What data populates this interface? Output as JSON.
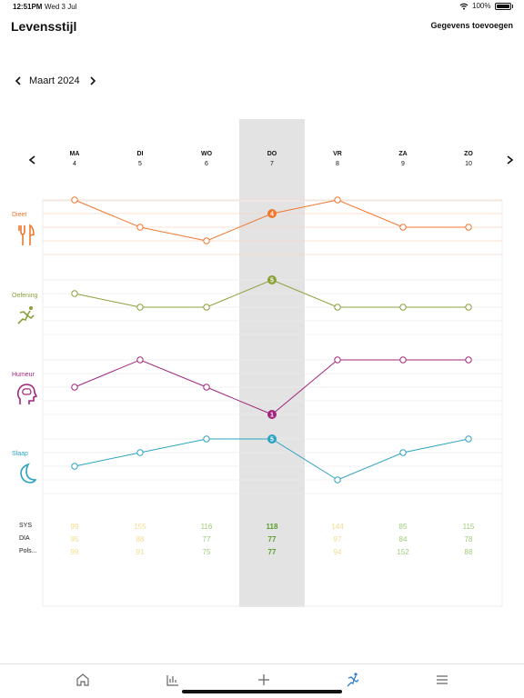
{
  "status": {
    "time": "12:51PM",
    "date": "Wed 3 Jul",
    "battery": "100%"
  },
  "header": {
    "title": "Levensstijl",
    "action": "Gegevens toevoegen"
  },
  "month_nav": {
    "label": "Maart 2024"
  },
  "days": [
    {
      "name": "MA",
      "num": "4"
    },
    {
      "name": "DI",
      "num": "5"
    },
    {
      "name": "WO",
      "num": "6"
    },
    {
      "name": "DO",
      "num": "7"
    },
    {
      "name": "VR",
      "num": "8"
    },
    {
      "name": "ZA",
      "num": "9"
    },
    {
      "name": "ZO",
      "num": "10"
    }
  ],
  "selected_day_index": 3,
  "categories": [
    {
      "key": "dieet",
      "label": "Dieet",
      "color": "#f0772e",
      "icon": "fork-knife-icon",
      "levels": [
        5,
        3,
        2,
        4,
        5,
        3,
        3
      ],
      "selected_value": "4"
    },
    {
      "key": "oefening",
      "label": "Oefening",
      "color": "#8aa03b",
      "icon": "running-icon",
      "levels": [
        4,
        3,
        3,
        5,
        3,
        3,
        3
      ],
      "selected_value": "5"
    },
    {
      "key": "humeur",
      "label": "Humeur",
      "color": "#a0277d",
      "icon": "brain-head-icon",
      "levels": [
        3,
        5,
        3,
        1,
        5,
        5,
        5
      ],
      "selected_value": "1"
    },
    {
      "key": "slaap",
      "label": "Slaap",
      "color": "#2ea3c0",
      "icon": "moon-icon",
      "levels": [
        3,
        4,
        5,
        5,
        2,
        4,
        5
      ],
      "selected_value": "5"
    }
  ],
  "metrics": {
    "labels": [
      "SYS",
      "DIA",
      "Pols..."
    ],
    "rows": [
      [
        "99",
        "155",
        "116",
        "118",
        "144",
        "85",
        "115"
      ],
      [
        "95",
        "88",
        "77",
        "77",
        "97",
        "84",
        "78"
      ],
      [
        "99",
        "91",
        "75",
        "77",
        "94",
        "152",
        "88"
      ]
    ],
    "colors": {
      "faint_yellow": "#f3dc8f",
      "light_green": "#9ccc7a",
      "green": "#5aa02c"
    }
  },
  "tabs": [
    {
      "name": "home-icon"
    },
    {
      "name": "chart-bars-icon"
    },
    {
      "name": "plus-icon"
    },
    {
      "name": "running-icon"
    },
    {
      "name": "menu-icon"
    }
  ]
}
